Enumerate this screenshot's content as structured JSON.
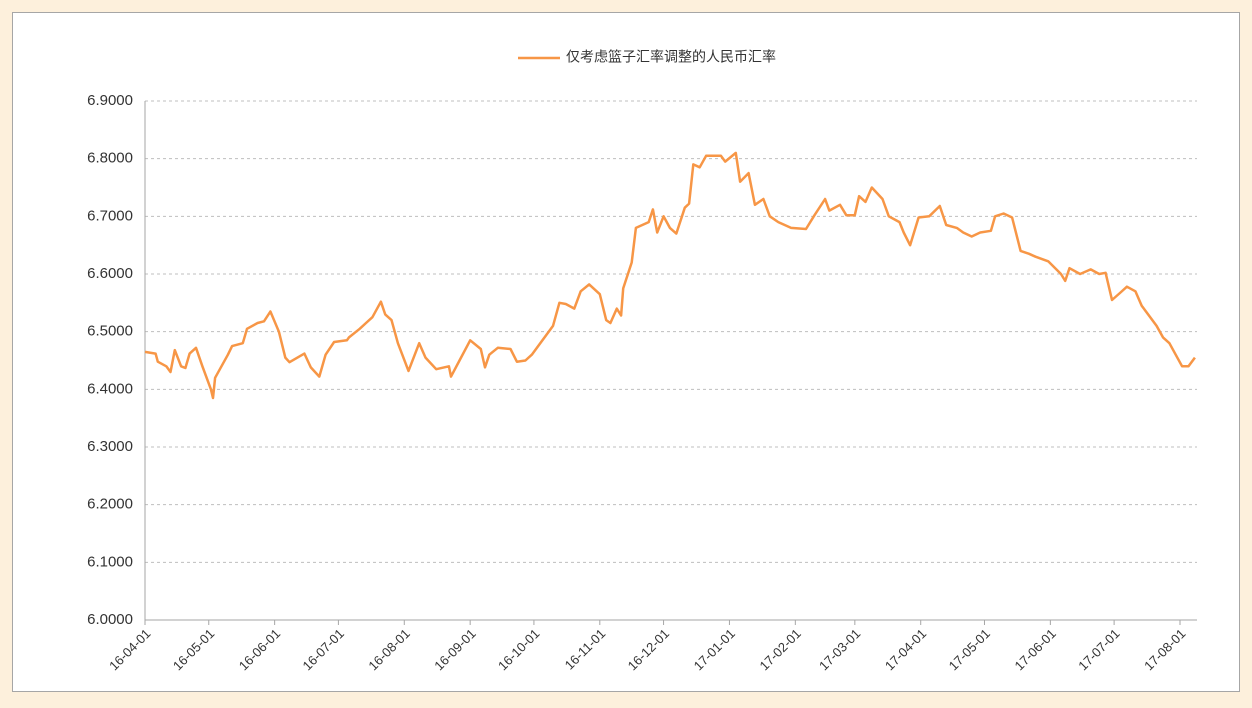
{
  "chart_data": {
    "type": "line",
    "x": [
      "16-04-01",
      "16-04-06",
      "16-04-07",
      "16-04-11",
      "16-04-13",
      "16-04-15",
      "16-04-18",
      "16-04-20",
      "16-04-22",
      "16-04-25",
      "16-04-28",
      "16-05-02",
      "16-05-03",
      "16-05-04",
      "16-05-10",
      "16-05-12",
      "16-05-17",
      "16-05-19",
      "16-05-24",
      "16-05-27",
      "16-05-30",
      "16-06-03",
      "16-06-06",
      "16-06-08",
      "16-06-15",
      "16-06-18",
      "16-06-22",
      "16-06-25",
      "16-06-29",
      "16-07-05",
      "16-07-06",
      "16-07-11",
      "16-07-14",
      "16-07-17",
      "16-07-21",
      "16-07-23",
      "16-07-26",
      "16-07-29",
      "16-08-03",
      "16-08-08",
      "16-08-11",
      "16-08-16",
      "16-08-22",
      "16-08-23",
      "16-08-27",
      "16-09-01",
      "16-09-06",
      "16-09-08",
      "16-09-10",
      "16-09-14",
      "16-09-20",
      "16-09-23",
      "16-09-27",
      "16-09-30",
      "16-10-10",
      "16-10-13",
      "16-10-16",
      "16-10-20",
      "16-10-23",
      "16-10-27",
      "16-11-01",
      "16-11-04",
      "16-11-06",
      "16-11-09",
      "16-11-11",
      "16-11-12",
      "16-11-16",
      "16-11-18",
      "16-11-24",
      "16-11-26",
      "16-11-28",
      "16-12-01",
      "16-12-04",
      "16-12-07",
      "16-12-11",
      "16-12-13",
      "16-12-15",
      "16-12-18",
      "16-12-21",
      "16-12-28",
      "16-12-30",
      "17-01-04",
      "17-01-06",
      "17-01-10",
      "17-01-13",
      "17-01-17",
      "17-01-20",
      "17-01-24",
      "17-01-30",
      "17-02-06",
      "17-02-10",
      "17-02-15",
      "17-02-17",
      "17-02-22",
      "17-02-25",
      "17-03-01",
      "17-03-03",
      "17-03-06",
      "17-03-09",
      "17-03-14",
      "17-03-17",
      "17-03-22",
      "17-03-24",
      "17-03-27",
      "17-03-31",
      "17-04-05",
      "17-04-10",
      "17-04-13",
      "17-04-18",
      "17-04-21",
      "17-04-25",
      "17-04-29",
      "17-05-04",
      "17-05-06",
      "17-05-10",
      "17-05-14",
      "17-05-18",
      "17-05-22",
      "17-05-25",
      "17-05-31",
      "17-06-06",
      "17-06-08",
      "17-06-10",
      "17-06-15",
      "17-06-20",
      "17-06-24",
      "17-06-27",
      "17-06-30",
      "17-07-04",
      "17-07-07",
      "17-07-11",
      "17-07-14",
      "17-07-17",
      "17-07-21",
      "17-07-24",
      "17-07-27",
      "17-07-30",
      "17-08-02",
      "17-08-05",
      "17-08-08"
    ],
    "series": [
      {
        "name": "仅考虑篮子汇率调整的人民币汇率",
        "color": "#f79646",
        "values": [
          6.465,
          6.462,
          6.448,
          6.44,
          6.43,
          6.468,
          6.44,
          6.437,
          6.462,
          6.472,
          6.44,
          6.4,
          6.385,
          6.42,
          6.46,
          6.475,
          6.48,
          6.505,
          6.515,
          6.518,
          6.535,
          6.5,
          6.455,
          6.447,
          6.462,
          6.438,
          6.422,
          6.46,
          6.482,
          6.485,
          6.49,
          6.505,
          6.515,
          6.525,
          6.552,
          6.53,
          6.52,
          6.48,
          6.432,
          6.48,
          6.455,
          6.435,
          6.44,
          6.422,
          6.45,
          6.485,
          6.47,
          6.438,
          6.46,
          6.472,
          6.47,
          6.448,
          6.45,
          6.46,
          6.51,
          6.55,
          6.548,
          6.54,
          6.57,
          6.582,
          6.565,
          6.52,
          6.515,
          6.54,
          6.528,
          6.575,
          6.62,
          6.68,
          6.69,
          6.712,
          6.672,
          6.7,
          6.68,
          6.67,
          6.715,
          6.722,
          6.79,
          6.785,
          6.805,
          6.805,
          6.795,
          6.81,
          6.76,
          6.775,
          6.72,
          6.73,
          6.7,
          6.69,
          6.68,
          6.678,
          6.702,
          6.73,
          6.71,
          6.72,
          6.702,
          6.702,
          6.735,
          6.725,
          6.75,
          6.73,
          6.7,
          6.69,
          6.672,
          6.65,
          6.698,
          6.7,
          6.718,
          6.685,
          6.68,
          6.672,
          6.665,
          6.672,
          6.675,
          6.7,
          6.705,
          6.698,
          6.64,
          6.635,
          6.63,
          6.622,
          6.6,
          6.588,
          6.61,
          6.6,
          6.608,
          6.6,
          6.602,
          6.555,
          6.568,
          6.578,
          6.57,
          6.545,
          6.53,
          6.51,
          6.49,
          6.48,
          6.46,
          6.44,
          6.44,
          6.455
        ]
      }
    ],
    "xlim": [
      "16-04-01",
      "17-08-09"
    ],
    "xticks": [
      "16-04-01",
      "16-05-01",
      "16-06-01",
      "16-07-01",
      "16-08-01",
      "16-09-01",
      "16-10-01",
      "16-11-01",
      "16-12-01",
      "17-01-01",
      "17-02-01",
      "17-03-01",
      "17-04-01",
      "17-05-01",
      "17-06-01",
      "17-07-01",
      "17-08-01"
    ],
    "ylim": [
      6.0,
      6.9
    ],
    "yticks": [
      {
        "value": 6.0,
        "label": "6.0000"
      },
      {
        "value": 6.1,
        "label": "6.1000"
      },
      {
        "value": 6.2,
        "label": "6.2000"
      },
      {
        "value": 6.3,
        "label": "6.3000"
      },
      {
        "value": 6.4,
        "label": "6.4000"
      },
      {
        "value": 6.5,
        "label": "6.5000"
      },
      {
        "value": 6.6,
        "label": "6.6000"
      },
      {
        "value": 6.7,
        "label": "6.7000"
      },
      {
        "value": 6.8,
        "label": "6.8000"
      },
      {
        "value": 6.9,
        "label": "6.9000"
      }
    ],
    "grid": true,
    "legend": "top"
  }
}
